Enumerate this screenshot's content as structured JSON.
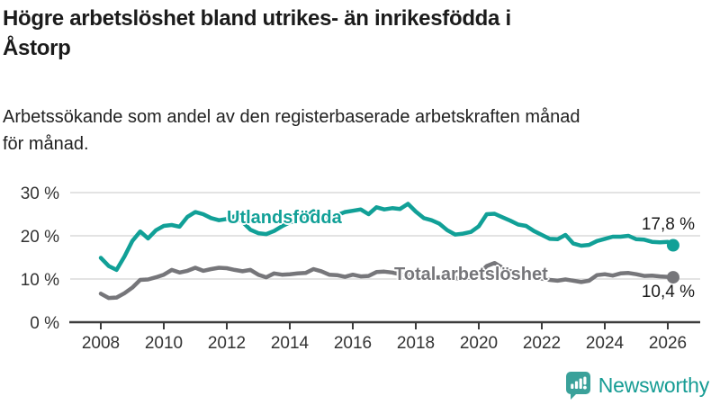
{
  "header": {
    "title": "Högre arbetslöshet bland utrikes- än inrikesfödda i Åstorp",
    "title_lines": [
      "Högre arbetslöshet bland utrikes- än inrikesfödda i",
      "Åstorp"
    ],
    "subtitle": "Arbetssökande som andel av den registerbaserade arbetskraften månad för månad.",
    "subtitle_lines": [
      "Arbetssökande som andel av den registerbaserade arbetskraften månad",
      "för månad."
    ]
  },
  "colors": {
    "foreign_born_line": "#11A097",
    "total_line": "#76767A",
    "axis": "#3C3C3C",
    "gridline": "#DADADA",
    "tick_label": "#333333",
    "logo_teal": "#3AA19A",
    "logo_text_teal": "#169C94"
  },
  "logo": {
    "brand": "Newsworthy",
    "icon": "newsworthy-speech-bubble-bar-chart-icon"
  },
  "chart_data": {
    "type": "line",
    "title": "Högre arbetslöshet bland utrikes- än inrikesfödda i Åstorp",
    "subtitle": "Arbetssökande som andel av den registerbaserade arbetskraften månad för månad.",
    "xlabel": "",
    "ylabel": "",
    "xlim": [
      2007.85,
      2027.0
    ],
    "ylim": [
      0,
      31
    ],
    "grid": true,
    "legend_position": "inline-on-line",
    "x_ticks": [
      {
        "value": 2008,
        "label": "2008"
      },
      {
        "value": 2010,
        "label": "2010"
      },
      {
        "value": 2012,
        "label": "2012"
      },
      {
        "value": 2014,
        "label": "2014"
      },
      {
        "value": 2016,
        "label": "2016"
      },
      {
        "value": 2018,
        "label": "2018"
      },
      {
        "value": 2020,
        "label": "2020"
      },
      {
        "value": 2022,
        "label": "2022"
      },
      {
        "value": 2024,
        "label": "2024"
      },
      {
        "value": 2026,
        "label": "2026"
      }
    ],
    "y_ticks": [
      {
        "value": 0,
        "label": "0 %"
      },
      {
        "value": 10,
        "label": "10 %"
      },
      {
        "value": 20,
        "label": "20 %"
      },
      {
        "value": 30,
        "label": "30 %"
      }
    ],
    "series": [
      {
        "name": "Utlandsfödda",
        "color": "#11A097",
        "end_label": "17,8 %",
        "end_value": 17.8,
        "points": [
          [
            2008.0,
            14.9
          ],
          [
            2008.25,
            13.0
          ],
          [
            2008.5,
            12.1
          ],
          [
            2008.75,
            15.2
          ],
          [
            2009.0,
            18.8
          ],
          [
            2009.25,
            21.0
          ],
          [
            2009.5,
            19.4
          ],
          [
            2009.75,
            21.3
          ],
          [
            2010.0,
            22.3
          ],
          [
            2010.25,
            22.5
          ],
          [
            2010.5,
            22.1
          ],
          [
            2010.75,
            24.4
          ],
          [
            2011.0,
            25.5
          ],
          [
            2011.25,
            25.0
          ],
          [
            2011.5,
            24.1
          ],
          [
            2011.75,
            23.6
          ],
          [
            2012.0,
            23.9
          ],
          [
            2012.25,
            24.5
          ],
          [
            2012.5,
            23.2
          ],
          [
            2012.75,
            21.4
          ],
          [
            2013.0,
            20.6
          ],
          [
            2013.25,
            20.4
          ],
          [
            2013.5,
            21.1
          ],
          [
            2013.75,
            22.2
          ],
          [
            2014.0,
            23.1
          ],
          [
            2014.25,
            23.7
          ],
          [
            2014.5,
            24.4
          ],
          [
            2014.75,
            25.7
          ],
          [
            2015.0,
            24.6
          ],
          [
            2015.25,
            24.1
          ],
          [
            2015.5,
            24.8
          ],
          [
            2015.75,
            25.5
          ],
          [
            2016.0,
            25.8
          ],
          [
            2016.25,
            26.1
          ],
          [
            2016.5,
            25.0
          ],
          [
            2016.75,
            26.6
          ],
          [
            2017.0,
            26.1
          ],
          [
            2017.25,
            26.4
          ],
          [
            2017.5,
            26.2
          ],
          [
            2017.75,
            27.4
          ],
          [
            2018.0,
            25.6
          ],
          [
            2018.25,
            24.1
          ],
          [
            2018.5,
            23.6
          ],
          [
            2018.75,
            22.8
          ],
          [
            2019.0,
            21.3
          ],
          [
            2019.25,
            20.3
          ],
          [
            2019.5,
            20.5
          ],
          [
            2019.75,
            20.9
          ],
          [
            2020.0,
            22.2
          ],
          [
            2020.25,
            25.0
          ],
          [
            2020.5,
            25.1
          ],
          [
            2020.75,
            24.3
          ],
          [
            2021.0,
            23.5
          ],
          [
            2021.25,
            22.6
          ],
          [
            2021.5,
            22.3
          ],
          [
            2021.75,
            21.1
          ],
          [
            2022.0,
            20.2
          ],
          [
            2022.25,
            19.3
          ],
          [
            2022.5,
            19.2
          ],
          [
            2022.75,
            20.2
          ],
          [
            2023.0,
            18.2
          ],
          [
            2023.25,
            17.7
          ],
          [
            2023.5,
            17.9
          ],
          [
            2023.75,
            18.8
          ],
          [
            2024.0,
            19.3
          ],
          [
            2024.25,
            19.8
          ],
          [
            2024.5,
            19.8
          ],
          [
            2024.75,
            20.0
          ],
          [
            2025.0,
            19.2
          ],
          [
            2025.25,
            19.1
          ],
          [
            2025.5,
            18.6
          ],
          [
            2025.75,
            18.5
          ],
          [
            2026.0,
            18.6
          ],
          [
            2026.17,
            17.8
          ]
        ]
      },
      {
        "name": "Total arbetslöshet",
        "color": "#76767A",
        "end_label": "10,4 %",
        "end_value": 10.4,
        "points": [
          [
            2008.0,
            6.6
          ],
          [
            2008.25,
            5.6
          ],
          [
            2008.5,
            5.7
          ],
          [
            2008.75,
            6.7
          ],
          [
            2009.0,
            8.0
          ],
          [
            2009.25,
            9.8
          ],
          [
            2009.5,
            9.9
          ],
          [
            2009.75,
            10.4
          ],
          [
            2010.0,
            11.0
          ],
          [
            2010.25,
            12.1
          ],
          [
            2010.5,
            11.5
          ],
          [
            2010.75,
            11.9
          ],
          [
            2011.0,
            12.6
          ],
          [
            2011.25,
            11.9
          ],
          [
            2011.5,
            12.3
          ],
          [
            2011.75,
            12.6
          ],
          [
            2012.0,
            12.5
          ],
          [
            2012.25,
            12.1
          ],
          [
            2012.5,
            11.8
          ],
          [
            2012.75,
            12.1
          ],
          [
            2013.0,
            11.0
          ],
          [
            2013.25,
            10.4
          ],
          [
            2013.5,
            11.3
          ],
          [
            2013.75,
            11.0
          ],
          [
            2014.0,
            11.1
          ],
          [
            2014.25,
            11.3
          ],
          [
            2014.5,
            11.4
          ],
          [
            2014.75,
            12.3
          ],
          [
            2015.0,
            11.8
          ],
          [
            2015.25,
            11.0
          ],
          [
            2015.5,
            10.9
          ],
          [
            2015.75,
            10.5
          ],
          [
            2016.0,
            11.0
          ],
          [
            2016.25,
            10.6
          ],
          [
            2016.5,
            10.7
          ],
          [
            2016.75,
            11.6
          ],
          [
            2017.0,
            11.7
          ],
          [
            2017.25,
            11.5
          ],
          [
            2017.5,
            11.1
          ],
          [
            2017.75,
            10.8
          ],
          [
            2018.0,
            10.6
          ],
          [
            2018.25,
            10.4
          ],
          [
            2018.5,
            10.3
          ],
          [
            2018.75,
            10.4
          ],
          [
            2019.0,
            10.3
          ],
          [
            2019.25,
            10.2
          ],
          [
            2019.5,
            10.1
          ],
          [
            2019.75,
            10.4
          ],
          [
            2020.0,
            11.2
          ],
          [
            2020.25,
            13.0
          ],
          [
            2020.5,
            13.7
          ],
          [
            2020.75,
            12.6
          ],
          [
            2021.0,
            11.8
          ],
          [
            2021.25,
            11.3
          ],
          [
            2021.5,
            10.8
          ],
          [
            2021.75,
            10.4
          ],
          [
            2022.0,
            10.1
          ],
          [
            2022.25,
            9.8
          ],
          [
            2022.5,
            9.6
          ],
          [
            2022.75,
            9.9
          ],
          [
            2023.0,
            9.6
          ],
          [
            2023.25,
            9.3
          ],
          [
            2023.5,
            9.6
          ],
          [
            2023.75,
            10.9
          ],
          [
            2024.0,
            11.1
          ],
          [
            2024.25,
            10.8
          ],
          [
            2024.5,
            11.3
          ],
          [
            2024.75,
            11.4
          ],
          [
            2025.0,
            11.1
          ],
          [
            2025.25,
            10.7
          ],
          [
            2025.5,
            10.8
          ],
          [
            2025.75,
            10.6
          ],
          [
            2026.0,
            10.5
          ],
          [
            2026.17,
            10.4
          ]
        ]
      }
    ]
  }
}
